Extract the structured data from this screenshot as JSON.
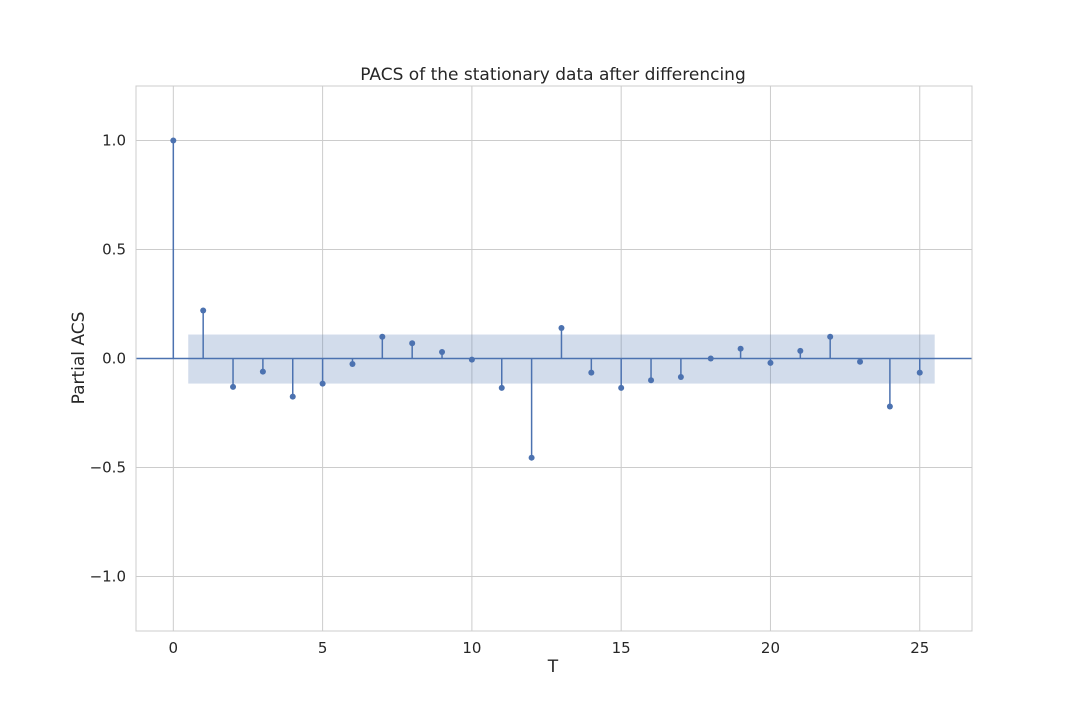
{
  "chart_data": {
    "type": "stem",
    "title": "PACS of the stationary data after differencing",
    "xlabel": "T",
    "ylabel": "Partial ACS",
    "xlim": [
      -1.25,
      26.75
    ],
    "ylim": [
      -1.25,
      1.25
    ],
    "xticks": [
      0,
      5,
      10,
      15,
      20,
      25
    ],
    "xtick_labels": [
      "0",
      "5",
      "10",
      "15",
      "20",
      "25"
    ],
    "yticks": [
      -1.0,
      -0.5,
      0.0,
      0.5,
      1.0
    ],
    "ytick_labels": [
      "−1.0",
      "−0.5",
      "0.0",
      "0.5",
      "1.0"
    ],
    "grid": true,
    "x": [
      0,
      1,
      2,
      3,
      4,
      5,
      6,
      7,
      8,
      9,
      10,
      11,
      12,
      13,
      14,
      15,
      16,
      17,
      18,
      19,
      20,
      21,
      22,
      23,
      24,
      25
    ],
    "values": [
      1.0,
      0.22,
      -0.13,
      -0.06,
      -0.175,
      -0.115,
      -0.025,
      0.1,
      0.07,
      0.03,
      -0.005,
      -0.135,
      -0.455,
      0.14,
      -0.065,
      -0.135,
      -0.1,
      -0.085,
      0.0,
      0.045,
      -0.02,
      0.035,
      0.1,
      -0.015,
      -0.22,
      -0.065
    ],
    "confidence_band": {
      "x_start": 0.5,
      "x_end": 25.5,
      "lower": -0.115,
      "upper": 0.11
    },
    "colors": {
      "stem": "#4c72b0",
      "band": "#4c72b0",
      "grid": "#cccccc",
      "frame": "#cccccc"
    }
  }
}
